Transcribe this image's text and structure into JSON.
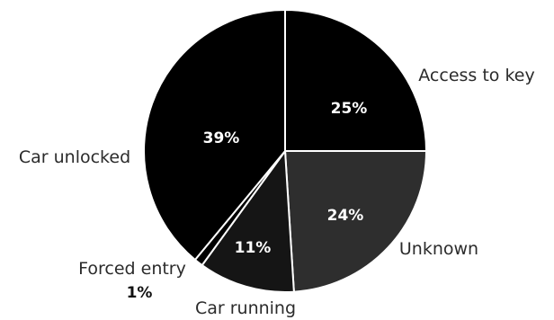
{
  "chart_data": {
    "type": "pie",
    "title": "",
    "slices": [
      {
        "label": "Access to key",
        "value": 25,
        "value_label": "25%",
        "color": "#000000"
      },
      {
        "label": "Unknown",
        "value": 24,
        "value_label": "24%",
        "color": "#2e2e2e"
      },
      {
        "label": "Car running",
        "value": 11,
        "value_label": "11%",
        "color": "#151515"
      },
      {
        "label": "Forced entry",
        "value": 1,
        "value_label": "1%",
        "color": "#000000"
      },
      {
        "label": "Car unlocked",
        "value": 39,
        "value_label": "39%",
        "color": "#000000"
      }
    ]
  }
}
